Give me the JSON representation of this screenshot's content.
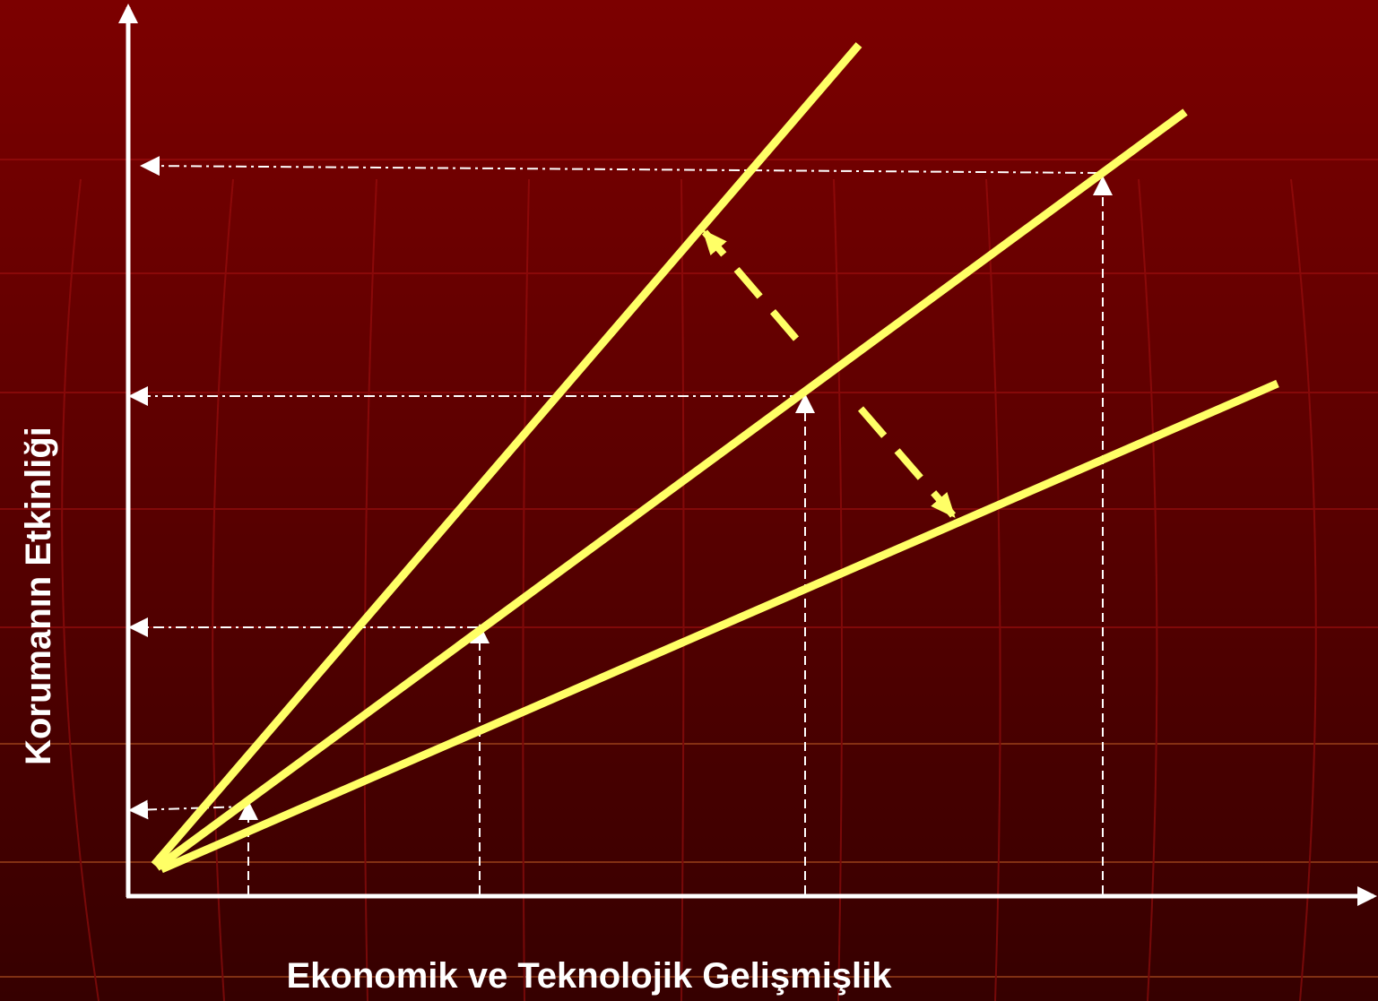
{
  "diagram": {
    "x_axis_label": "Ekonomik ve Teknolojik Gelişmişlik",
    "y_axis_label": "Korumanın Etkinliği"
  }
}
